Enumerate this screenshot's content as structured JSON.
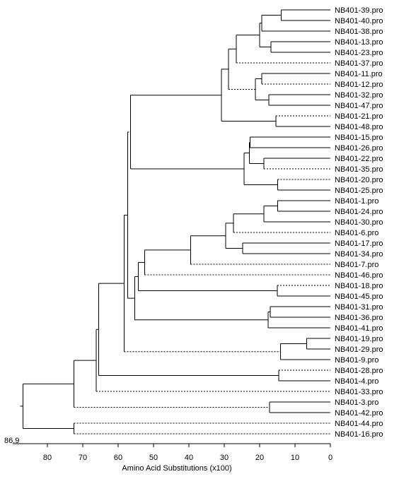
{
  "tree": {
    "leaves": [
      "NB401-39.pro",
      "NB401-40.pro",
      "NB401-38.pro",
      "NB401-13.pro",
      "NB401-23.pro",
      "NB401-37.pro",
      "NB401-11.pro",
      "NB401-12.pro",
      "NB401-32.pro",
      "NB401-47.pro",
      "NB401-21.pro",
      "NB401-48.pro",
      "NB401-15.pro",
      "NB401-26.pro",
      "NB401-22.pro",
      "NB401-35.pro",
      "NB401-20.pro",
      "NB401-25.pro",
      "NB401-1.pro",
      "NB401-24.pro",
      "NB401-30.pro",
      "NB401-6.pro",
      "NB401-17.pro",
      "NB401-34.pro",
      "NB401-7.pro",
      "NB401-46.pro",
      "NB401-18.pro",
      "NB401-45.pro",
      "NB401-31.pro",
      "NB401-36.pro",
      "NB401-41.pro",
      "NB401-19.pro",
      "NB401-29.pro",
      "NB401-9.pro",
      "NB401-28.pro",
      "NB401-4.pro",
      "NB401-33.pro",
      "NB401-3.pro",
      "NB401-42.pro",
      "NB401-44.pro",
      "NB401-16.pro"
    ],
    "root_value": "86.9"
  },
  "axis": {
    "title": "Amino Acid Substitutions (x100)",
    "min": 0,
    "max": 86.9,
    "ticks": [
      80,
      70,
      60,
      50,
      40,
      30,
      20,
      10,
      0
    ],
    "reversed": true
  }
}
